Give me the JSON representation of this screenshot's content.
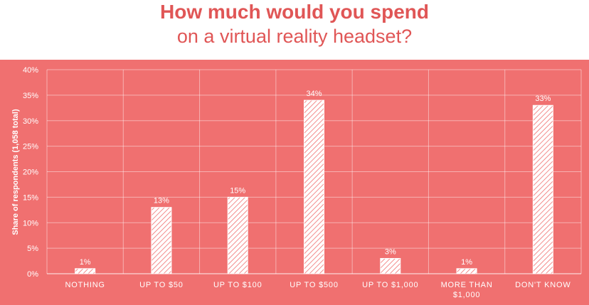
{
  "header": {
    "title_line1": "How much would you spend",
    "title_line2": "on a virtual reality headset?"
  },
  "colors": {
    "accent": "#e05656",
    "panel": "#f07070",
    "foreground": "#ffffff"
  },
  "chart_data": {
    "type": "bar",
    "title": "How much would you spend on a virtual reality headset?",
    "ylabel": "Share of respondents (1,058 total)",
    "xlabel": "",
    "ylim": [
      0,
      40
    ],
    "yticks": [
      0,
      5,
      10,
      15,
      20,
      25,
      30,
      35,
      40
    ],
    "ytick_labels": [
      "0%",
      "5%",
      "10%",
      "15%",
      "20%",
      "25%",
      "30%",
      "35%",
      "40%"
    ],
    "categories": [
      [
        "NOTHING"
      ],
      [
        "UP TO $50"
      ],
      [
        "UP TO $100"
      ],
      [
        "UP TO $500"
      ],
      [
        "UP TO $1,000"
      ],
      [
        "MORE THAN",
        "$1,000"
      ],
      [
        "DON'T KNOW"
      ]
    ],
    "values": [
      1,
      13,
      15,
      34,
      3,
      1,
      33
    ],
    "value_labels": [
      "1%",
      "13%",
      "15%",
      "34%",
      "3%",
      "1%",
      "33%"
    ],
    "grid": true,
    "legend": "none"
  }
}
